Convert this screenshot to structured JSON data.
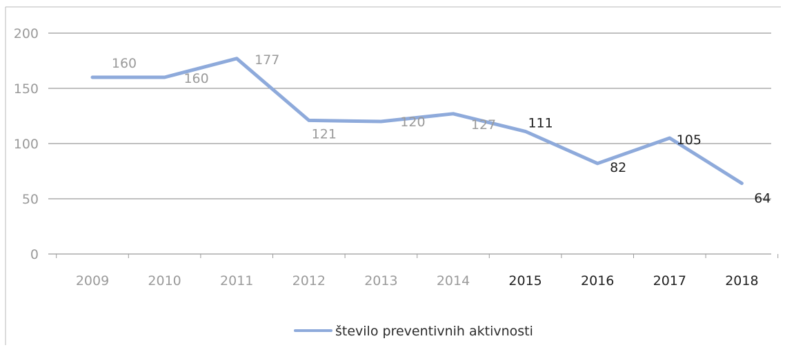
{
  "chart_data": {
    "type": "line",
    "categories": [
      "2009",
      "2010",
      "2011",
      "2012",
      "2013",
      "2014",
      "2015",
      "2016",
      "2017",
      "2018"
    ],
    "series": [
      {
        "name": "število preventivnih aktivnosti",
        "values": [
          160,
          160,
          177,
          121,
          120,
          127,
          111,
          82,
          105,
          64
        ],
        "color": "#8eaadb"
      }
    ],
    "ylim": [
      0,
      200
    ],
    "yticks": [
      "0",
      "50",
      "100",
      "150",
      "200"
    ],
    "grid": true,
    "legend": "bottom-center",
    "colors": {
      "gridline": "#9a9a9a",
      "axis": "#9a9a9a",
      "label_faded": "#9a9a9a",
      "label_dark": "#1e1e1e",
      "frame": "#b8b8b8"
    }
  }
}
